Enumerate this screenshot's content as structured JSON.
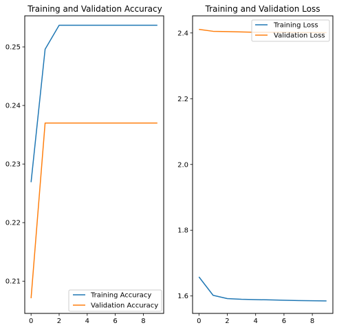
{
  "chart_data": [
    {
      "type": "line",
      "title": "Training and Validation Accuracy",
      "xlabel": "",
      "ylabel": "",
      "x": [
        0,
        1,
        2,
        3,
        4,
        5,
        6,
        7,
        8,
        9
      ],
      "xlim": [
        -0.45,
        9.45
      ],
      "ylim": [
        0.2045,
        0.2553
      ],
      "xticks": [
        0,
        2,
        4,
        6,
        8
      ],
      "yticks": [
        0.21,
        0.22,
        0.23,
        0.24,
        0.25
      ],
      "xtick_labels": [
        "0",
        "2",
        "4",
        "6",
        "8"
      ],
      "ytick_labels": [
        "0.21",
        "0.22",
        "0.23",
        "0.24",
        "0.25"
      ],
      "grid": false,
      "legend_position": "lower right",
      "series": [
        {
          "name": "Training Accuracy",
          "color": "#1f77b4",
          "values": [
            0.2269,
            0.2496,
            0.2537,
            0.2537,
            0.2537,
            0.2537,
            0.2537,
            0.2537,
            0.2537,
            0.2537
          ]
        },
        {
          "name": "Validation Accuracy",
          "color": "#ff7f0e",
          "values": [
            0.2071,
            0.237,
            0.237,
            0.237,
            0.237,
            0.237,
            0.237,
            0.237,
            0.237,
            0.237
          ]
        }
      ]
    },
    {
      "type": "line",
      "title": "Training and Validation Loss",
      "xlabel": "",
      "ylabel": "",
      "x": [
        0,
        1,
        2,
        3,
        4,
        5,
        6,
        7,
        8,
        9
      ],
      "xlim": [
        -0.45,
        9.45
      ],
      "ylim": [
        1.547,
        2.452
      ],
      "xticks": [
        0,
        2,
        4,
        6,
        8
      ],
      "yticks": [
        1.6,
        1.8,
        2.0,
        2.2,
        2.4
      ],
      "xtick_labels": [
        "0",
        "2",
        "4",
        "6",
        "8"
      ],
      "ytick_labels": [
        "1.6",
        "1.8",
        "2.0",
        "2.2",
        "2.4"
      ],
      "grid": false,
      "legend_position": "upper right",
      "series": [
        {
          "name": "Training Loss",
          "color": "#1f77b4",
          "values": [
            1.658,
            1.602,
            1.592,
            1.59,
            1.589,
            1.588,
            1.587,
            1.586,
            1.5855,
            1.585
          ]
        },
        {
          "name": "Validation Loss",
          "color": "#ff7f0e",
          "values": [
            2.411,
            2.405,
            2.404,
            2.403,
            2.402,
            2.402,
            2.402,
            2.401,
            2.401,
            2.401
          ]
        }
      ]
    }
  ]
}
